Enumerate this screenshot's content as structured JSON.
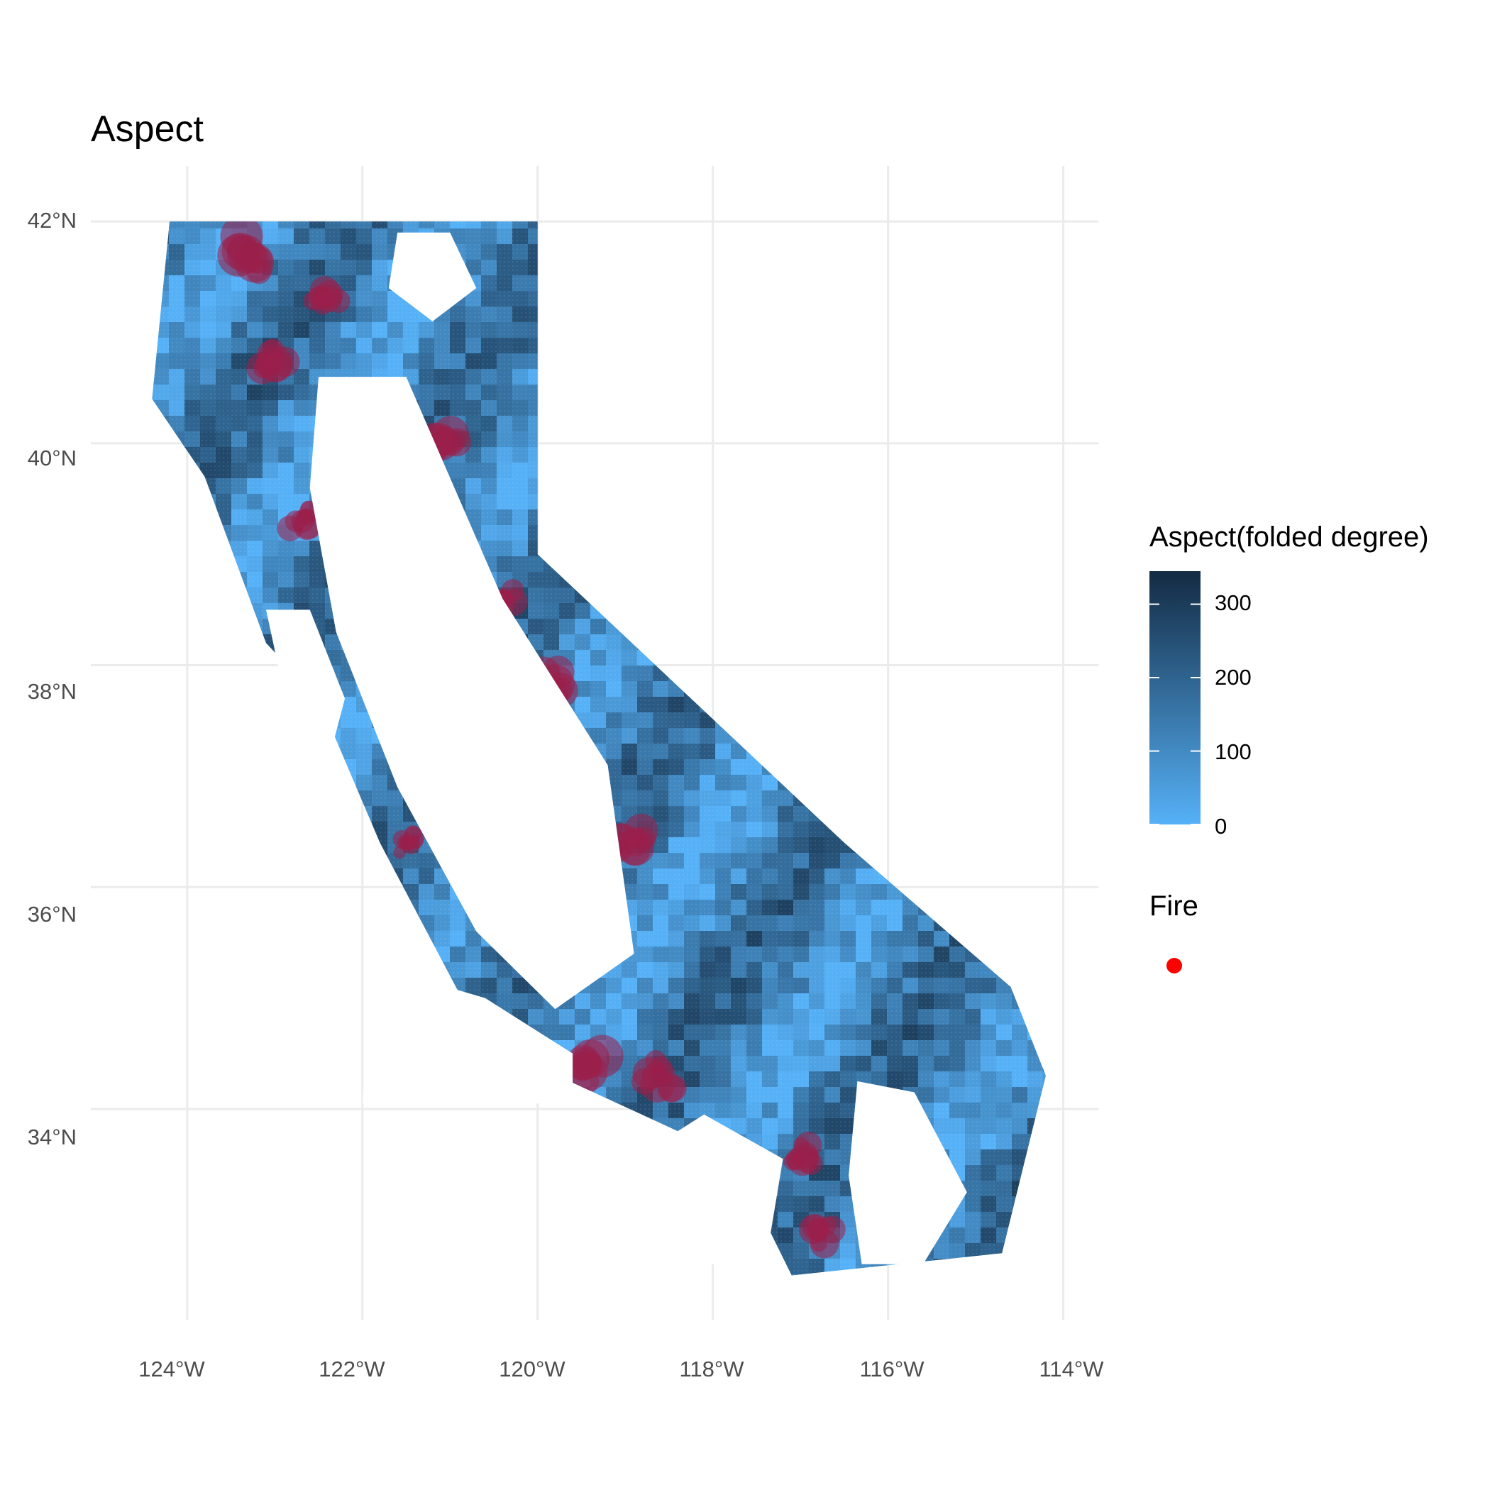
{
  "chart_data": {
    "type": "scatter",
    "title": "Aspect",
    "xlabel": "",
    "ylabel": "",
    "x_ticks": [
      -124,
      -122,
      -120,
      -118,
      -116,
      -114
    ],
    "x_tick_labels": [
      "124°W",
      "122°W",
      "120°W",
      "118°W",
      "116°W",
      "114°W"
    ],
    "y_ticks": [
      34,
      36,
      38,
      40,
      42
    ],
    "y_tick_labels": [
      "34°N",
      "36°N",
      "38°N",
      "40°N",
      "42°N"
    ],
    "xlim": [
      -125.1,
      -113.6
    ],
    "ylim": [
      32.1,
      42.5
    ],
    "grid": true,
    "region_outline": [
      [
        -124.2,
        42.0
      ],
      [
        -120.0,
        42.0
      ],
      [
        -120.0,
        39.0
      ],
      [
        -116.5,
        36.4
      ],
      [
        -114.6,
        35.1
      ],
      [
        -114.2,
        34.3
      ],
      [
        -114.7,
        32.7
      ],
      [
        -117.1,
        32.5
      ],
      [
        -117.6,
        33.3
      ],
      [
        -118.4,
        33.8
      ],
      [
        -120.6,
        34.6
      ],
      [
        -121.8,
        36.4
      ],
      [
        -122.5,
        37.7
      ],
      [
        -123.1,
        38.2
      ],
      [
        -123.8,
        39.7
      ],
      [
        -124.4,
        40.4
      ]
    ],
    "gaps": [
      {
        "points": [
          [
            -122.5,
            40.6
          ],
          [
            -121.5,
            40.6
          ],
          [
            -120.4,
            38.6
          ],
          [
            -119.2,
            37.1
          ],
          [
            -118.9,
            35.4
          ],
          [
            -119.8,
            34.9
          ],
          [
            -120.7,
            35.6
          ],
          [
            -121.6,
            36.9
          ],
          [
            -122.3,
            38.3
          ],
          [
            -122.6,
            39.6
          ]
        ]
      },
      {
        "points": [
          [
            -121.6,
            41.9
          ],
          [
            -121.0,
            41.9
          ],
          [
            -120.7,
            41.4
          ],
          [
            -121.2,
            41.1
          ],
          [
            -121.7,
            41.4
          ]
        ]
      },
      {
        "points": [
          [
            -123.1,
            38.5
          ],
          [
            -122.6,
            38.5
          ],
          [
            -122.2,
            37.7
          ],
          [
            -122.4,
            37.1
          ],
          [
            -122.8,
            37.4
          ]
        ]
      },
      {
        "points": [
          [
            -121.9,
            35.3
          ],
          [
            -120.6,
            35.0
          ],
          [
            -119.6,
            34.5
          ],
          [
            -119.6,
            34.05
          ],
          [
            -122.0,
            34.05
          ]
        ]
      },
      {
        "points": [
          [
            -118.1,
            33.95
          ],
          [
            -117.2,
            33.55
          ],
          [
            -117.4,
            32.6
          ],
          [
            -118.8,
            32.6
          ],
          [
            -118.9,
            33.55
          ]
        ]
      },
      {
        "points": [
          [
            -116.35,
            34.25
          ],
          [
            -115.7,
            34.15
          ],
          [
            -115.1,
            33.25
          ],
          [
            -115.6,
            32.6
          ],
          [
            -116.3,
            32.6
          ],
          [
            -116.45,
            33.4
          ]
        ]
      }
    ],
    "series": [
      {
        "name": "Aspect(folded degree)",
        "encoding": "color",
        "color_low": "#56b1f7",
        "color_high": "#132b43",
        "value_range": [
          0,
          345
        ],
        "points_note": "dense gridded point cloud; aspect values vary locally"
      },
      {
        "name": "Fire",
        "encoding": "overlay",
        "color": "#ff0000",
        "hotspots": [
          {
            "lon": -123.3,
            "lat": 41.7,
            "r": 0.35
          },
          {
            "lon": -122.4,
            "lat": 41.3,
            "r": 0.3
          },
          {
            "lon": -121.3,
            "lat": 41.5,
            "r": 0.25
          },
          {
            "lon": -123.0,
            "lat": 40.7,
            "r": 0.3
          },
          {
            "lon": -121.1,
            "lat": 40.0,
            "r": 0.3
          },
          {
            "lon": -122.7,
            "lat": 39.3,
            "r": 0.25
          },
          {
            "lon": -120.4,
            "lat": 38.6,
            "r": 0.25
          },
          {
            "lon": -119.9,
            "lat": 37.8,
            "r": 0.35
          },
          {
            "lon": -118.9,
            "lat": 36.4,
            "r": 0.3
          },
          {
            "lon": -121.5,
            "lat": 36.4,
            "r": 0.2
          },
          {
            "lon": -119.4,
            "lat": 34.4,
            "r": 0.35
          },
          {
            "lon": -118.6,
            "lat": 34.3,
            "r": 0.3
          },
          {
            "lon": -117.0,
            "lat": 33.6,
            "r": 0.25
          },
          {
            "lon": -116.8,
            "lat": 32.9,
            "r": 0.25
          }
        ]
      }
    ],
    "legend": {
      "placement": "right",
      "color_title": "Aspect(folded degree)",
      "color_breaks": [
        0,
        100,
        200,
        300
      ],
      "fire_title": "Fire",
      "fire_color": "#ff0000"
    }
  }
}
